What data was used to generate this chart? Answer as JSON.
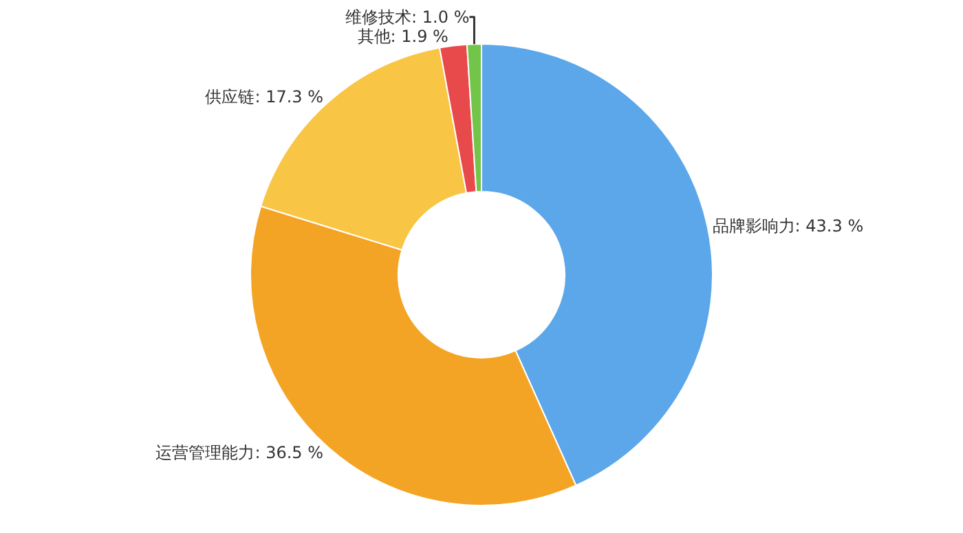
{
  "chart_data": {
    "type": "donut",
    "categories": [
      "品牌影响力",
      "运营管理能力",
      "供应链",
      "其他",
      "维修技术"
    ],
    "values": [
      43.3,
      36.5,
      17.3,
      1.9,
      1.0
    ],
    "colors": [
      "#5ba7ea",
      "#f4a425",
      "#f8c545",
      "#e8494b",
      "#72c548"
    ],
    "value_labels": [
      "43.3 %",
      "36.5 %",
      "17.3 %",
      "1.9 %",
      "1.0 %"
    ],
    "legend": false
  }
}
